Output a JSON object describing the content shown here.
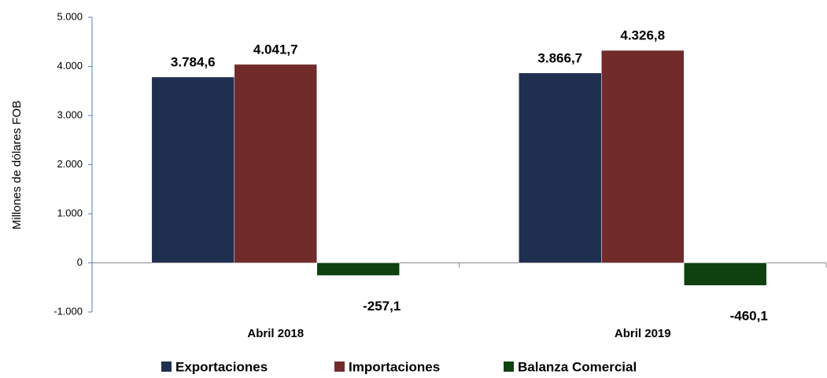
{
  "chart_data": {
    "type": "bar",
    "y_label": "Millones de dólares FOB",
    "categories": [
      "Abril 2018",
      "Abril 2019"
    ],
    "series": [
      {
        "name": "Exportaciones",
        "color": "#1f2f4f",
        "values": [
          3784.6,
          3866.7
        ],
        "value_labels": [
          "3.784,6",
          "3.866,7"
        ]
      },
      {
        "name": "Importaciones",
        "color": "#722b2b",
        "values": [
          4041.7,
          4326.8
        ],
        "value_labels": [
          "4.041,7",
          "4.326,8"
        ]
      },
      {
        "name": "Balanza Comercial",
        "color": "#0f4010",
        "values": [
          -257.1,
          -460.1
        ],
        "value_labels": [
          "-257,1",
          "-460,1"
        ]
      }
    ],
    "ylim": [
      -1000,
      5000
    ],
    "yticks": [
      {
        "value": -1000,
        "label": "-1.000"
      },
      0,
      {
        "value": 1000,
        "label": "1.000"
      },
      {
        "value": 2000,
        "label": "2.000"
      },
      {
        "value": 3000,
        "label": "3.000"
      },
      {
        "value": 4000,
        "label": "4.000"
      },
      {
        "value": 5000,
        "label": "5.000"
      }
    ],
    "legend": "bottom"
  }
}
